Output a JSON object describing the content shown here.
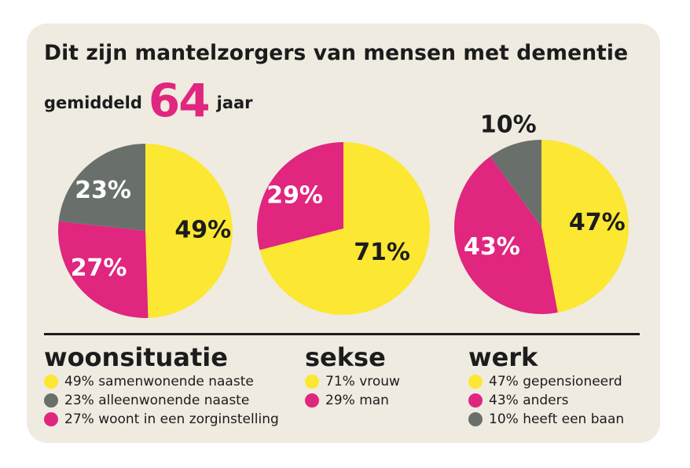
{
  "title": "Dit zijn mantelzorgers van mensen met dementie",
  "average": {
    "prefix": "gemiddeld",
    "value": "64",
    "suffix": "jaar"
  },
  "colors": {
    "yellow": "#fce733",
    "pink": "#e0267e",
    "gray": "#69706b",
    "background": "#efebe1",
    "text": "#1c1c1c"
  },
  "chart_data": [
    {
      "type": "pie",
      "title": "woonsituatie",
      "series": [
        {
          "name": "samenwonende naaste",
          "value": 49,
          "label": "49%",
          "color": "#fce733",
          "legend": "49% samenwonende naaste"
        },
        {
          "name": "alleenwonende naaste",
          "value": 23,
          "label": "23%",
          "color": "#69706b",
          "legend": "23% alleenwonende naaste"
        },
        {
          "name": "woont in een zorginstelling",
          "value": 27,
          "label": "27%",
          "color": "#e0267e",
          "legend": "27% woont in een zorginstelling"
        }
      ],
      "slice_order": [
        0,
        2,
        1
      ]
    },
    {
      "type": "pie",
      "title": "sekse",
      "series": [
        {
          "name": "vrouw",
          "value": 71,
          "label": "71%",
          "color": "#fce733",
          "legend": "71% vrouw"
        },
        {
          "name": "man",
          "value": 29,
          "label": "29%",
          "color": "#e0267e",
          "legend": "29% man"
        }
      ],
      "slice_order": [
        0,
        1
      ]
    },
    {
      "type": "pie",
      "title": "werk",
      "series": [
        {
          "name": "gepensioneerd",
          "value": 47,
          "label": "47%",
          "color": "#fce733",
          "legend": "47% gepensioneerd"
        },
        {
          "name": "anders",
          "value": 43,
          "label": "43%",
          "color": "#e0267e",
          "legend": "43% anders"
        },
        {
          "name": "heeft een baan",
          "value": 10,
          "label": "10%",
          "color": "#69706b",
          "legend": "10% heeft een baan"
        }
      ],
      "slice_order": [
        0,
        1,
        2
      ]
    }
  ]
}
